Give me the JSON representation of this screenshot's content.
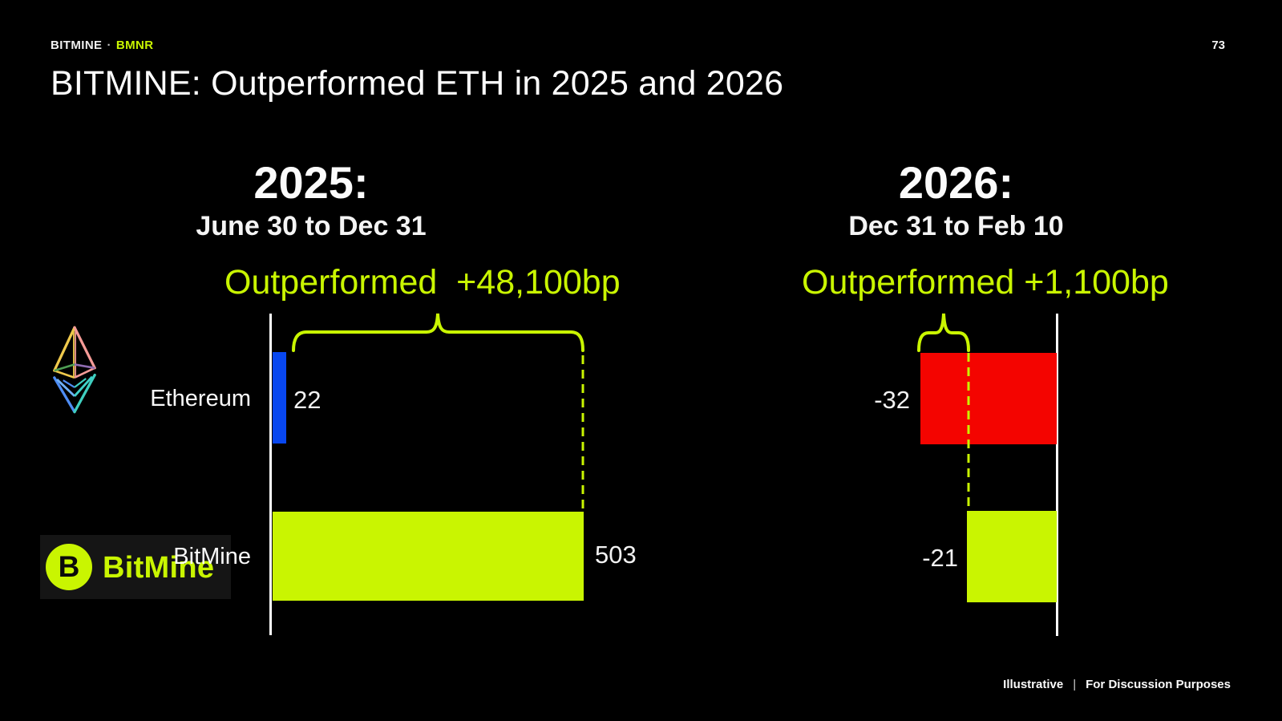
{
  "header": {
    "brand": "BITMINE",
    "separator": "·",
    "ticker": "BMNR",
    "page_number": "73",
    "title": "BITMINE: Outperformed ETH in 2025 and 2026"
  },
  "panels": {
    "left": {
      "year": "2025:",
      "date_range": "June 30 to Dec 31",
      "outperformance": "Outperformed  +48,100bp",
      "rows": [
        {
          "label": "Ethereum",
          "value": "22"
        },
        {
          "label": "BitMine",
          "value": "503"
        }
      ]
    },
    "right": {
      "year": "2026:",
      "date_range": "Dec 31 to Feb 10",
      "outperformance": "Outperformed +1,100bp",
      "rows": [
        {
          "value": "-32"
        },
        {
          "value": "-21"
        }
      ]
    }
  },
  "chart_data": [
    {
      "type": "bar",
      "orientation": "horizontal",
      "title": "2025: June 30 to Dec 31",
      "categories": [
        "Ethereum",
        "BitMine"
      ],
      "values": [
        22,
        503
      ],
      "value_labels": [
        "22",
        "503"
      ],
      "bar_colors": [
        "#0847F0",
        "#C9F501"
      ],
      "annotation": "Outperformed  +48,100bp",
      "outperformance_bp": 48100,
      "legend": "none",
      "grid": false
    },
    {
      "type": "bar",
      "orientation": "horizontal",
      "title": "2026: Dec 31 to Feb 10",
      "categories": [
        "Ethereum",
        "BitMine"
      ],
      "values": [
        -32,
        -21
      ],
      "value_labels": [
        "-32",
        "-21"
      ],
      "bar_colors": [
        "#F40400",
        "#C9F501"
      ],
      "annotation": "Outperformed +1,100bp",
      "outperformance_bp": 1100,
      "legend": "none",
      "grid": false
    }
  ],
  "logo": {
    "monogram": "B",
    "wordmark": "BitMine"
  },
  "icons": {
    "ethereum": "ethereum-diamond-wireframe",
    "bitmine": "bitmine-b-in-lime-circle"
  },
  "colors": {
    "background": "#000000",
    "lime": "#C9F501",
    "blue": "#0847F0",
    "red": "#F40400",
    "axis_white": "#FFFFFF",
    "logo_panel": "#151515"
  },
  "footer": {
    "note_left": "Illustrative",
    "separator": "|",
    "note_right": "For Discussion Purposes"
  }
}
